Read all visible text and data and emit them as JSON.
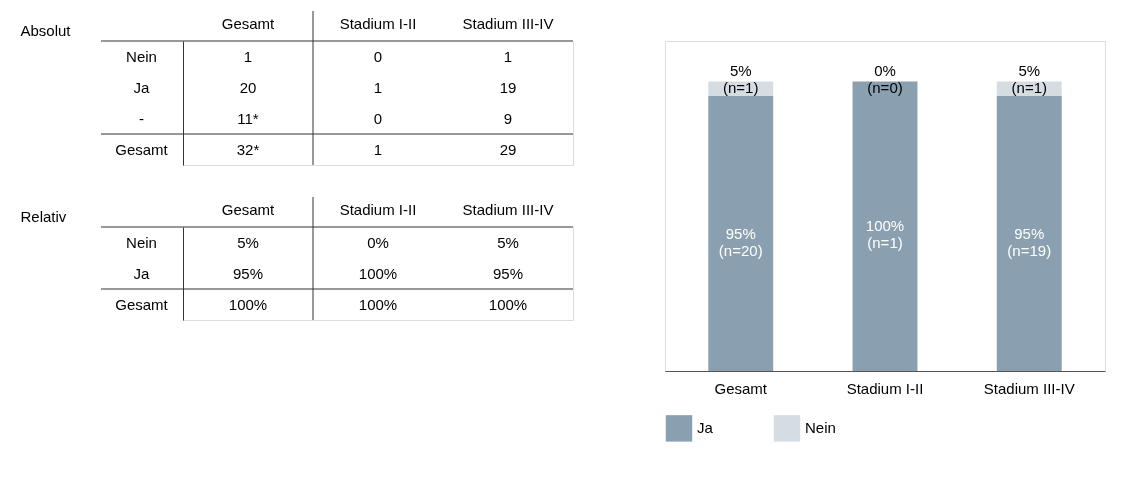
{
  "chart_data": [
    {
      "type": "other",
      "title": "Absolut",
      "categories": [
        "Gesamt",
        "Stadium I-II",
        "Stadium III-IV"
      ],
      "y_categories": [
        "Nein",
        "Ja",
        "-",
        "Gesamt"
      ],
      "cell_labels": [
        [
          "1",
          "0",
          "1"
        ],
        [
          "20",
          "1",
          "19"
        ],
        [
          "11*",
          "0",
          "9"
        ],
        [
          "32*",
          "1",
          "29"
        ]
      ]
    },
    {
      "type": "other",
      "title": "Relativ",
      "categories": [
        "Gesamt",
        "Stadium I-II",
        "Stadium III-IV"
      ],
      "y_categories": [
        "Nein",
        "Ja",
        "Gesamt"
      ],
      "cell_labels": [
        [
          "5%",
          "0%",
          "5%"
        ],
        [
          "95%",
          "100%",
          "95%"
        ],
        [
          "100%",
          "100%",
          "100%"
        ]
      ]
    },
    {
      "type": "bar",
      "stacked": true,
      "categories": [
        "Gesamt",
        "Stadium I-II",
        "Stadium III-IV"
      ],
      "legend": "bottom",
      "series": [
        {
          "name": "Ja",
          "color": "#8aa0b0",
          "values": [
            95,
            100,
            95
          ],
          "value_labels": [
            "95%\n(n=20)",
            "100%\n(n=1)",
            "95%\n(n=19)"
          ]
        },
        {
          "name": "Nein",
          "color": "#d5dde3",
          "values": [
            5,
            0,
            5
          ],
          "value_labels": [
            "5%\n(n=1)",
            "0%\n(n=0)",
            "5%\n(n=1)"
          ]
        }
      ]
    }
  ]
}
